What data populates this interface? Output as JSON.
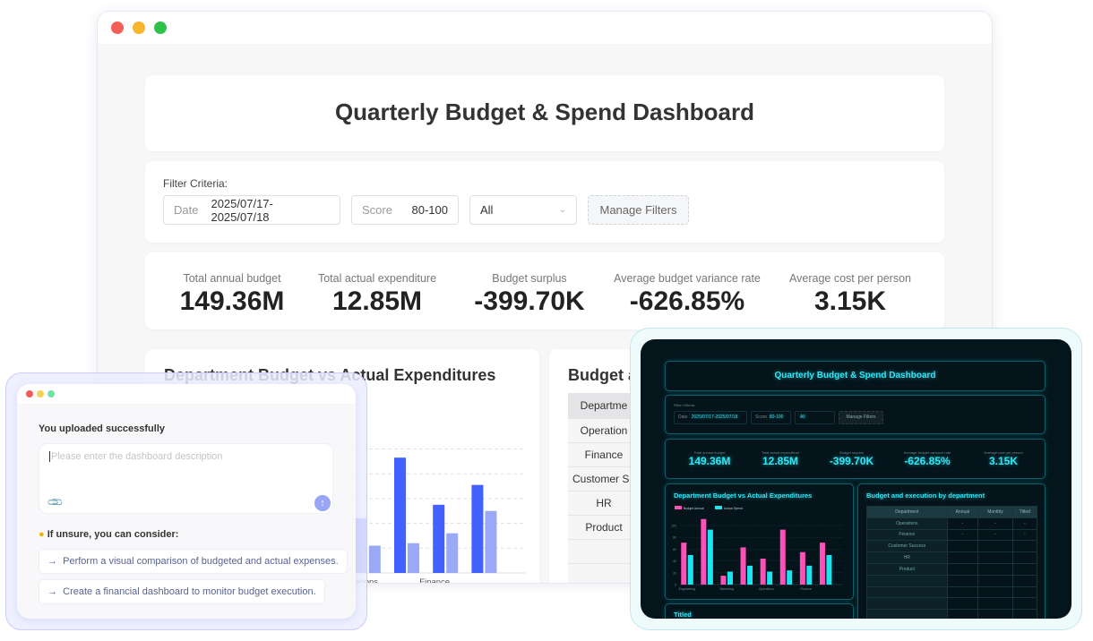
{
  "dashboard": {
    "title": "Quarterly Budget & Spend Dashboard",
    "filter_label": "Filter Criteria:",
    "date_label": "Date",
    "date_value": "2025/07/17-2025/07/18",
    "score_label": "Score",
    "score_value": "80-100",
    "select_value": "All",
    "manage_filters": "Manage Filters",
    "kpis": [
      {
        "label": "Total annual budget",
        "value": "149.36M"
      },
      {
        "label": "Total actual expenditure",
        "value": "12.85M"
      },
      {
        "label": "Budget surplus",
        "value": "-399.70K"
      },
      {
        "label": "Average budget variance rate",
        "value": "-626.85%"
      },
      {
        "label": "Average cost per person",
        "value": "3.15K"
      }
    ],
    "chart_title": "Department Budget vs Actual Expenditures",
    "table_title": "Budget and execution by department",
    "table_title_partial": "Budget a",
    "table_headers": [
      "Department",
      "Annual",
      "Monthly",
      "Titled"
    ],
    "table_rows": [
      [
        "Operations",
        "-",
        "-",
        "-"
      ],
      [
        "Finance",
        "-",
        "-",
        "-"
      ],
      [
        "Customer Success",
        "",
        "",
        ""
      ],
      [
        "HR",
        "",
        "",
        ""
      ],
      [
        "Product",
        "",
        "",
        ""
      ]
    ],
    "light_table_rows": [
      "Operation",
      "Finance",
      "Customer Su",
      "HR",
      "Product"
    ],
    "light_table_header": "Departme",
    "card3_title": "Titled"
  },
  "chart_data": {
    "type": "bar",
    "categories": [
      "Engineering",
      "",
      "Marketing",
      "",
      "Operations",
      "",
      "Finance",
      ""
    ],
    "series": [
      {
        "name": "Budget Annual",
        "values": [
          71,
          111,
          15,
          63,
          44,
          93,
          55,
          71
        ]
      },
      {
        "name": "Actual Spend",
        "values": [
          50,
          93,
          22,
          32,
          22,
          24,
          32,
          50
        ]
      }
    ],
    "yticks": [
      0,
      20,
      40,
      60,
      80,
      100
    ],
    "colors_light": [
      "#4361ff",
      "#9aa8f5"
    ],
    "colors_dark": [
      "#ff4fb8",
      "#19e6f0"
    ],
    "grid": true,
    "legend": "top-left"
  },
  "chat": {
    "status": "You uploaded successfully",
    "placeholder": "Please enter the dashboard description",
    "hint": "If unsure, you can consider:",
    "suggestions": [
      "Perform a visual comparison of budgeted and actual expenses.",
      "Create a financial dashboard to monitor budget execution."
    ],
    "arrow": "→"
  }
}
